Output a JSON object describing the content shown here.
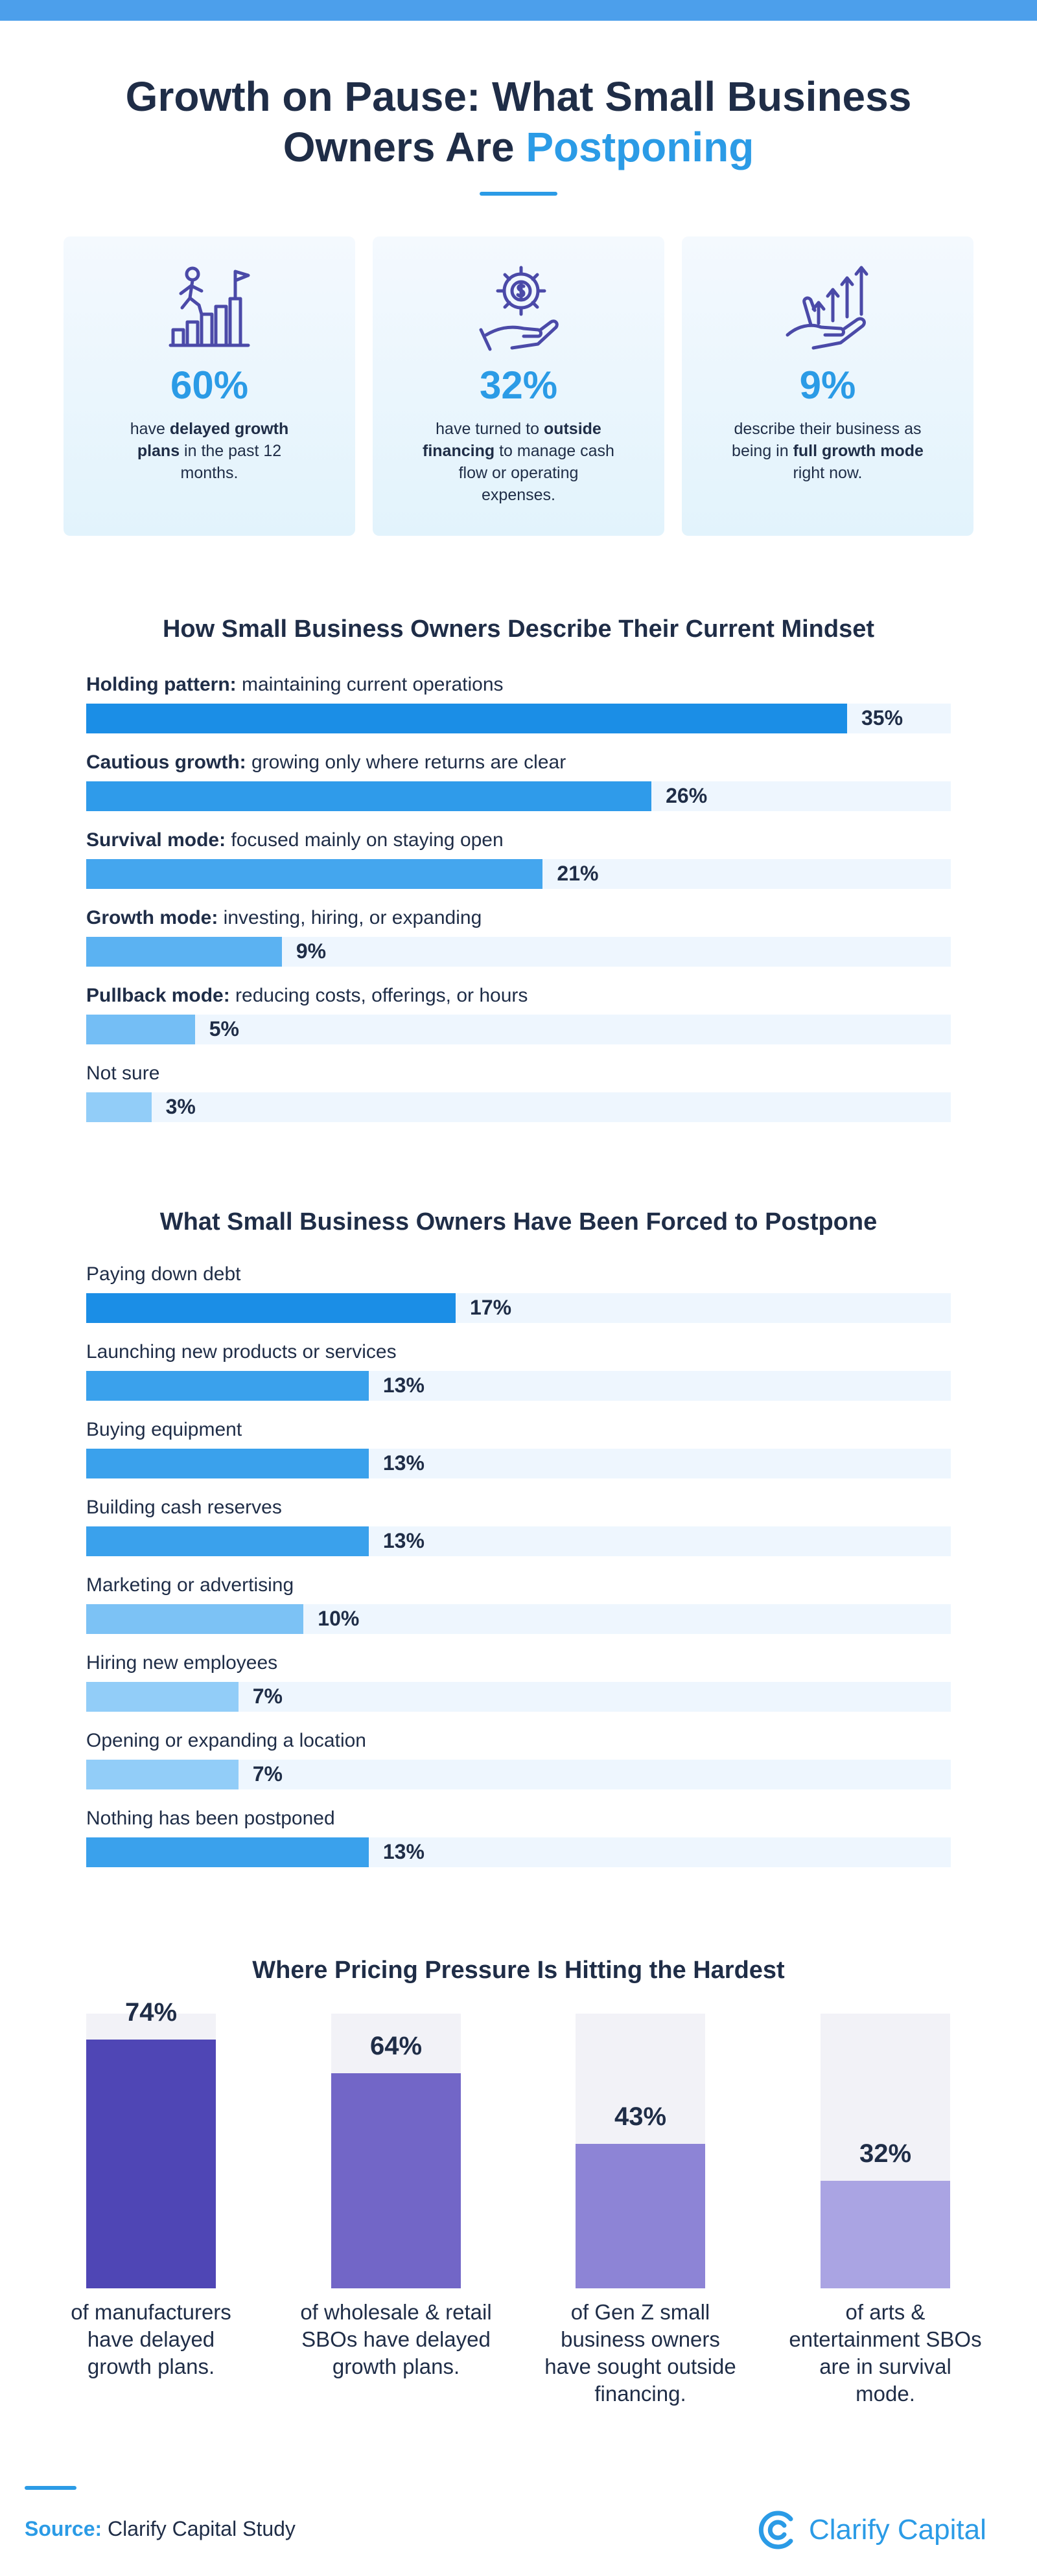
{
  "header": {
    "title_part1": "Growth on Pause: What Small Business",
    "title_part2": "Owners Are",
    "title_accent": "Postponing"
  },
  "stats": [
    {
      "icon": "growth-stairs-icon",
      "value": "60%",
      "pre": "have ",
      "bold": "delayed growth plans",
      "post": " in the past 12 months."
    },
    {
      "icon": "financing-gear-icon",
      "value": "32%",
      "pre": "have turned to ",
      "bold": "outside financing",
      "post": " to manage cash flow or operating expenses."
    },
    {
      "icon": "hand-growth-arrows-icon",
      "value": "9%",
      "pre": "describe their business as being in ",
      "bold": "full growth mode",
      "post": " right now."
    }
  ],
  "mindset": {
    "title": "How Small Business Owners Describe Their Current Mindset",
    "items": [
      {
        "bold": "Holding pattern:",
        "label": " maintaining current operations",
        "value": 35,
        "value_label": "35%",
        "color": "#1b8ee6"
      },
      {
        "bold": "Cautious growth:",
        "label": " growing only where returns are clear",
        "value": 26,
        "value_label": "26%",
        "color": "#2f9bea"
      },
      {
        "bold": "Survival mode:",
        "label": " focused mainly on staying open",
        "value": 21,
        "value_label": "21%",
        "color": "#44a6ee"
      },
      {
        "bold": "Growth mode:",
        "label": " investing, hiring, or expanding",
        "value": 9,
        "value_label": "9%",
        "color": "#5bb2f2"
      },
      {
        "bold": "Pullback mode:",
        "label": " reducing costs, offerings, or hours",
        "value": 5,
        "value_label": "5%",
        "color": "#74bef5"
      },
      {
        "bold": "",
        "label": "Not sure",
        "value": 3,
        "value_label": "3%",
        "color": "#92cdf8"
      }
    ]
  },
  "postpone": {
    "title": "What Small Business Owners Have Been Forced to Postpone",
    "items": [
      {
        "label": "Paying down debt",
        "value": 17,
        "value_label": "17%",
        "color": "#1b8ee6"
      },
      {
        "label": "Launching new products or services",
        "value": 13,
        "value_label": "13%",
        "color": "#3aa1ec"
      },
      {
        "label": "Buying equipment",
        "value": 13,
        "value_label": "13%",
        "color": "#3aa1ec"
      },
      {
        "label": "Building cash reserves",
        "value": 13,
        "value_label": "13%",
        "color": "#3aa1ec"
      },
      {
        "label": "Marketing or advertising",
        "value": 10,
        "value_label": "10%",
        "color": "#7cc2f5"
      },
      {
        "label": "Hiring new employees",
        "value": 7,
        "value_label": "7%",
        "color": "#92cdf8"
      },
      {
        "label": "Opening or expanding a location",
        "value": 7,
        "value_label": "7%",
        "color": "#92cdf8"
      },
      {
        "label": "Nothing has been postponed",
        "value": 13,
        "value_label": "13%",
        "color": "#3aa1ec"
      }
    ]
  },
  "pricing": {
    "title": "Where Pricing Pressure Is Hitting the Hardest",
    "items": [
      {
        "value": 74,
        "value_label": "74%",
        "caption": "of manufacturers have delayed growth plans.",
        "color": "#4f46b5"
      },
      {
        "value": 64,
        "value_label": "64%",
        "caption": "of wholesale & retail SBOs have delayed growth plans.",
        "color": "#7266c7"
      },
      {
        "value": 43,
        "value_label": "43%",
        "caption": "of Gen Z small business owners have sought outside financing.",
        "color": "#8d84d6"
      },
      {
        "value": 32,
        "value_label": "32%",
        "caption": "of arts & entertainment SBOs are in survival mode.",
        "color": "#aaa4e3"
      }
    ]
  },
  "footer": {
    "source_prefix": "Source:",
    "source_text": " Clarify Capital Study",
    "brand_name": "Clarify Capital"
  },
  "chart_data": [
    {
      "type": "bar",
      "title": "How Small Business Owners Describe Their Current Mindset",
      "categories": [
        "Holding pattern: maintaining current operations",
        "Cautious growth: growing only where returns are clear",
        "Survival mode: focused mainly on staying open",
        "Growth mode: investing, hiring, or expanding",
        "Pullback mode: reducing costs, offerings, or hours",
        "Not sure"
      ],
      "values": [
        35,
        26,
        21,
        9,
        5,
        3
      ],
      "orientation": "horizontal"
    },
    {
      "type": "bar",
      "title": "What Small Business Owners Have Been Forced to Postpone",
      "categories": [
        "Paying down debt",
        "Launching new products or services",
        "Buying equipment",
        "Building cash reserves",
        "Marketing or advertising",
        "Hiring new employees",
        "Opening or expanding a location",
        "Nothing has been postponed"
      ],
      "values": [
        17,
        13,
        13,
        13,
        10,
        7,
        7,
        13
      ],
      "orientation": "horizontal"
    },
    {
      "type": "bar",
      "title": "Where Pricing Pressure Is Hitting the Hardest",
      "categories": [
        "of manufacturers have delayed growth plans.",
        "of wholesale & retail SBOs have delayed growth plans.",
        "of Gen Z small business owners have sought outside financing.",
        "of arts & entertainment SBOs are in survival mode."
      ],
      "values": [
        74,
        64,
        43,
        32
      ],
      "ylim": [
        0,
        100
      ],
      "orientation": "vertical"
    }
  ]
}
